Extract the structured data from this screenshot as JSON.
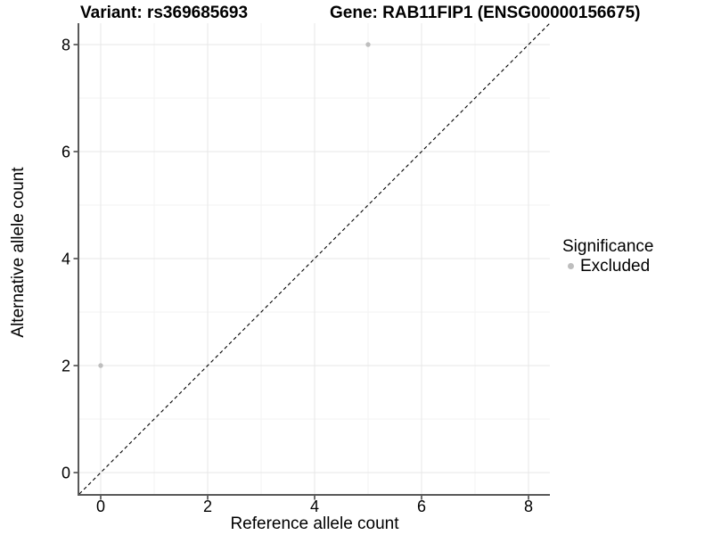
{
  "chart_data": {
    "type": "scatter",
    "titles": [
      "Variant: rs369685693",
      "Gene: RAB11FIP1 (ENSG00000156675)"
    ],
    "xlabel": "Reference allele count",
    "ylabel": "Alternative allele count",
    "xlim": [
      -0.4,
      8.4
    ],
    "ylim": [
      -0.4,
      8.4
    ],
    "x_ticks": [
      0,
      2,
      4,
      6,
      8
    ],
    "y_ticks": [
      0,
      2,
      4,
      6,
      8
    ],
    "x_minor_gridlines": [
      1,
      3,
      5,
      7
    ],
    "y_minor_gridlines": [
      1,
      3,
      5,
      7
    ],
    "grid": "major+minor",
    "reference_line": {
      "kind": "identity",
      "equation": "y = x",
      "style": "dashed",
      "color": "#000000"
    },
    "series": [
      {
        "name": "Excluded",
        "color": "#bebebe",
        "points": [
          {
            "x": 0,
            "y": 2
          },
          {
            "x": 5,
            "y": 8
          }
        ]
      }
    ],
    "legend": {
      "title": "Significance",
      "position": "right",
      "items": [
        {
          "label": "Excluded",
          "color": "#bebebe"
        }
      ]
    }
  },
  "colors": {
    "background": "#ffffff",
    "axis_line": "#595959",
    "tick_mark": "#333333",
    "grid_major": "#e7e7e7",
    "grid_minor": "#f3f3f3",
    "text": "#000000"
  }
}
